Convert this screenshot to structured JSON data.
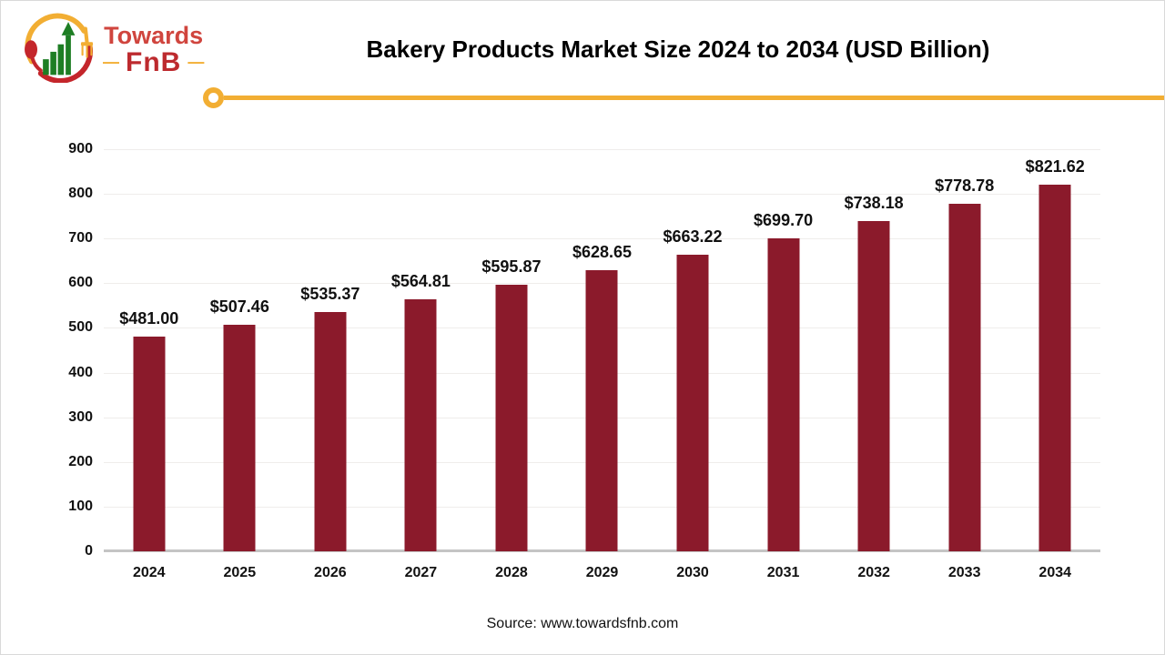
{
  "brand": {
    "name_top": "Towards",
    "name_bottom": "FnB",
    "dash": "—"
  },
  "header": {
    "title": "Bakery Products Market Size 2024 to 2034 (USD Billion)"
  },
  "footer": {
    "source": "Source: www.towardsfnb.com"
  },
  "colors": {
    "bar": "#8B1A2B",
    "accent_yellow": "#F2AE33",
    "brand_red": "#D0453E",
    "brand_dark_red": "#BD2A2E",
    "logo_green": "#1E7E24",
    "gridline": "#EFEDEB",
    "axis_line": "#C4C4C4"
  },
  "chart_data": {
    "type": "bar",
    "title": "Bakery Products Market Size 2024 to 2034 (USD Billion)",
    "categories": [
      "2024",
      "2025",
      "2026",
      "2027",
      "2028",
      "2029",
      "2030",
      "2031",
      "2032",
      "2033",
      "2034"
    ],
    "values": [
      481.0,
      507.46,
      535.37,
      564.81,
      595.87,
      628.65,
      663.22,
      699.7,
      738.18,
      778.78,
      821.62
    ],
    "value_labels": [
      "$481.00",
      "$507.46",
      "$535.37",
      "$564.81",
      "$595.87",
      "$628.65",
      "$663.22",
      "$699.70",
      "$738.18",
      "$778.78",
      "$821.62"
    ],
    "unit": "USD Billion",
    "xlabel": "",
    "ylabel": "",
    "ylim": [
      0,
      900
    ],
    "yticks": [
      0,
      100,
      200,
      300,
      400,
      500,
      600,
      700,
      800,
      900
    ],
    "grid": true,
    "legend_position": "none",
    "bar_color": "#8B1A2B"
  }
}
